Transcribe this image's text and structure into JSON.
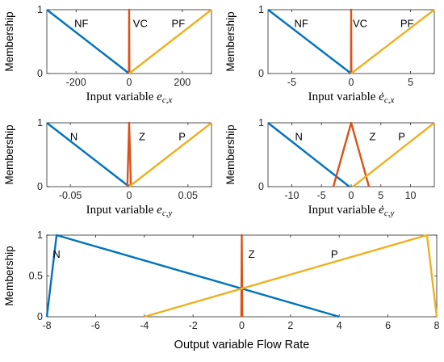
{
  "colors": {
    "blue": "#0072BD",
    "orange": "#D95319",
    "yellow": "#EDB120"
  },
  "chart_data": [
    {
      "type": "line",
      "ylabel": "Membership",
      "xlabel": {
        "text": "Input variable ",
        "symbol": "e",
        "sub": "c,x",
        "dot": false
      },
      "xlim": [
        -310,
        310
      ],
      "ylim": [
        0,
        1
      ],
      "xticks": [
        -200,
        0,
        200
      ],
      "yticks": [
        0,
        1
      ],
      "xtick_labels": [
        "-200",
        "0",
        "200"
      ],
      "ytick_labels": [
        "0",
        "1"
      ],
      "series": [
        {
          "name": "NF",
          "color": "#0072BD",
          "points": [
            [
              -310,
              1
            ],
            [
              0,
              0
            ]
          ]
        },
        {
          "name": "VC",
          "color": "#D95319",
          "points": [
            [
              -1,
              0
            ],
            [
              0,
              1
            ],
            [
              1,
              0
            ]
          ]
        },
        {
          "name": "PF",
          "color": "#EDB120",
          "points": [
            [
              0,
              0
            ],
            [
              310,
              1
            ]
          ]
        }
      ],
      "labels": [
        {
          "text": "NF",
          "x": -180,
          "y": 0.78
        },
        {
          "text": "VC",
          "x": 42,
          "y": 0.78
        },
        {
          "text": "PF",
          "x": 185,
          "y": 0.78
        }
      ]
    },
    {
      "type": "line",
      "ylabel": "Membership",
      "xlabel": {
        "text": "Input variable ",
        "symbol": "e",
        "sub": "c,x",
        "dot": true
      },
      "xlim": [
        -7,
        7
      ],
      "ylim": [
        0,
        1
      ],
      "xticks": [
        -5,
        0,
        5
      ],
      "yticks": [
        0,
        1
      ],
      "xtick_labels": [
        "-5",
        "0",
        "5"
      ],
      "ytick_labels": [
        "0",
        "1"
      ],
      "series": [
        {
          "name": "NF",
          "color": "#0072BD",
          "points": [
            [
              -7,
              1
            ],
            [
              0,
              0
            ]
          ]
        },
        {
          "name": "VC",
          "color": "#D95319",
          "points": [
            [
              -0.02,
              0
            ],
            [
              0,
              1
            ],
            [
              0.02,
              0
            ]
          ]
        },
        {
          "name": "PF",
          "color": "#EDB120",
          "points": [
            [
              0,
              0
            ],
            [
              7,
              1
            ]
          ]
        }
      ],
      "labels": [
        {
          "text": "NF",
          "x": -4.2,
          "y": 0.78
        },
        {
          "text": "VC",
          "x": 0.75,
          "y": 0.78
        },
        {
          "text": "PF",
          "x": 4.7,
          "y": 0.78
        }
      ]
    },
    {
      "type": "line",
      "ylabel": "Membership",
      "xlabel": {
        "text": "Input variable ",
        "symbol": "e",
        "sub": "c,y",
        "dot": false
      },
      "xlim": [
        -0.07,
        0.07
      ],
      "ylim": [
        0,
        1
      ],
      "xticks": [
        -0.05,
        0,
        0.05
      ],
      "yticks": [
        0,
        1
      ],
      "xtick_labels": [
        "-0.05",
        "0",
        "0.05"
      ],
      "ytick_labels": [
        "0",
        "1"
      ],
      "series": [
        {
          "name": "N",
          "color": "#0072BD",
          "points": [
            [
              -0.07,
              1
            ],
            [
              0,
              0
            ]
          ]
        },
        {
          "name": "Z",
          "color": "#D95319",
          "points": [
            [
              -0.0015,
              0
            ],
            [
              0,
              1
            ],
            [
              0.0015,
              0
            ]
          ]
        },
        {
          "name": "P",
          "color": "#EDB120",
          "points": [
            [
              0,
              0
            ],
            [
              0.07,
              1
            ]
          ]
        }
      ],
      "labels": [
        {
          "text": "N",
          "x": -0.047,
          "y": 0.78
        },
        {
          "text": "Z",
          "x": 0.011,
          "y": 0.78
        },
        {
          "text": "P",
          "x": 0.045,
          "y": 0.78
        }
      ]
    },
    {
      "type": "line",
      "ylabel": "Membership",
      "xlabel": {
        "text": "Input variable ",
        "symbol": "e",
        "sub": "c,y",
        "dot": true
      },
      "xlim": [
        -14,
        14
      ],
      "ylim": [
        0,
        1
      ],
      "xticks": [
        -10,
        -5,
        0,
        5,
        10
      ],
      "yticks": [
        0,
        1
      ],
      "xtick_labels": [
        "-10",
        "-5",
        "0",
        "5",
        "10"
      ],
      "ytick_labels": [
        "0",
        "1"
      ],
      "series": [
        {
          "name": "N",
          "color": "#0072BD",
          "points": [
            [
              -14,
              1
            ],
            [
              -0.3,
              0
            ]
          ]
        },
        {
          "name": "Z",
          "color": "#D95319",
          "points": [
            [
              -3,
              0
            ],
            [
              0,
              1
            ],
            [
              3,
              0
            ]
          ]
        },
        {
          "name": "P",
          "color": "#EDB120",
          "points": [
            [
              0.3,
              0
            ],
            [
              14,
              1
            ]
          ]
        }
      ],
      "labels": [
        {
          "text": "N",
          "x": -8.8,
          "y": 0.78
        },
        {
          "text": "Z",
          "x": 3.6,
          "y": 0.78
        },
        {
          "text": "P",
          "x": 8.5,
          "y": 0.78
        }
      ]
    },
    {
      "type": "line",
      "ylabel": "Membership",
      "xlabel": {
        "text": "Output variable Flow Rate",
        "symbol": "",
        "sub": "",
        "dot": false
      },
      "xlim": [
        -8,
        8
      ],
      "ylim": [
        0,
        1
      ],
      "xticks": [
        -8,
        -6,
        -4,
        -2,
        0,
        2,
        4,
        6,
        8
      ],
      "yticks": [
        0,
        0.5,
        1
      ],
      "xtick_labels": [
        "-8",
        "-6",
        "-4",
        "-2",
        "0",
        "2",
        "4",
        "6",
        "8"
      ],
      "ytick_labels": [
        "0",
        "0.5",
        "1"
      ],
      "series": [
        {
          "name": "N",
          "color": "#0072BD",
          "points": [
            [
              -8,
              0
            ],
            [
              -7.6,
              1
            ],
            [
              4,
              0
            ]
          ]
        },
        {
          "name": "Z",
          "color": "#D95319",
          "points": [
            [
              -0.02,
              0
            ],
            [
              0,
              1
            ],
            [
              0.02,
              0
            ]
          ]
        },
        {
          "name": "P",
          "color": "#EDB120",
          "points": [
            [
              -4,
              0
            ],
            [
              7.6,
              1
            ],
            [
              8,
              0
            ]
          ]
        }
      ],
      "labels": [
        {
          "text": "N",
          "x": -7.6,
          "y": 0.76,
          "dx": 110
        },
        {
          "text": "Z",
          "x": 0.4,
          "y": 0.76
        },
        {
          "text": "P",
          "x": 3.8,
          "y": 0.76
        }
      ]
    }
  ]
}
